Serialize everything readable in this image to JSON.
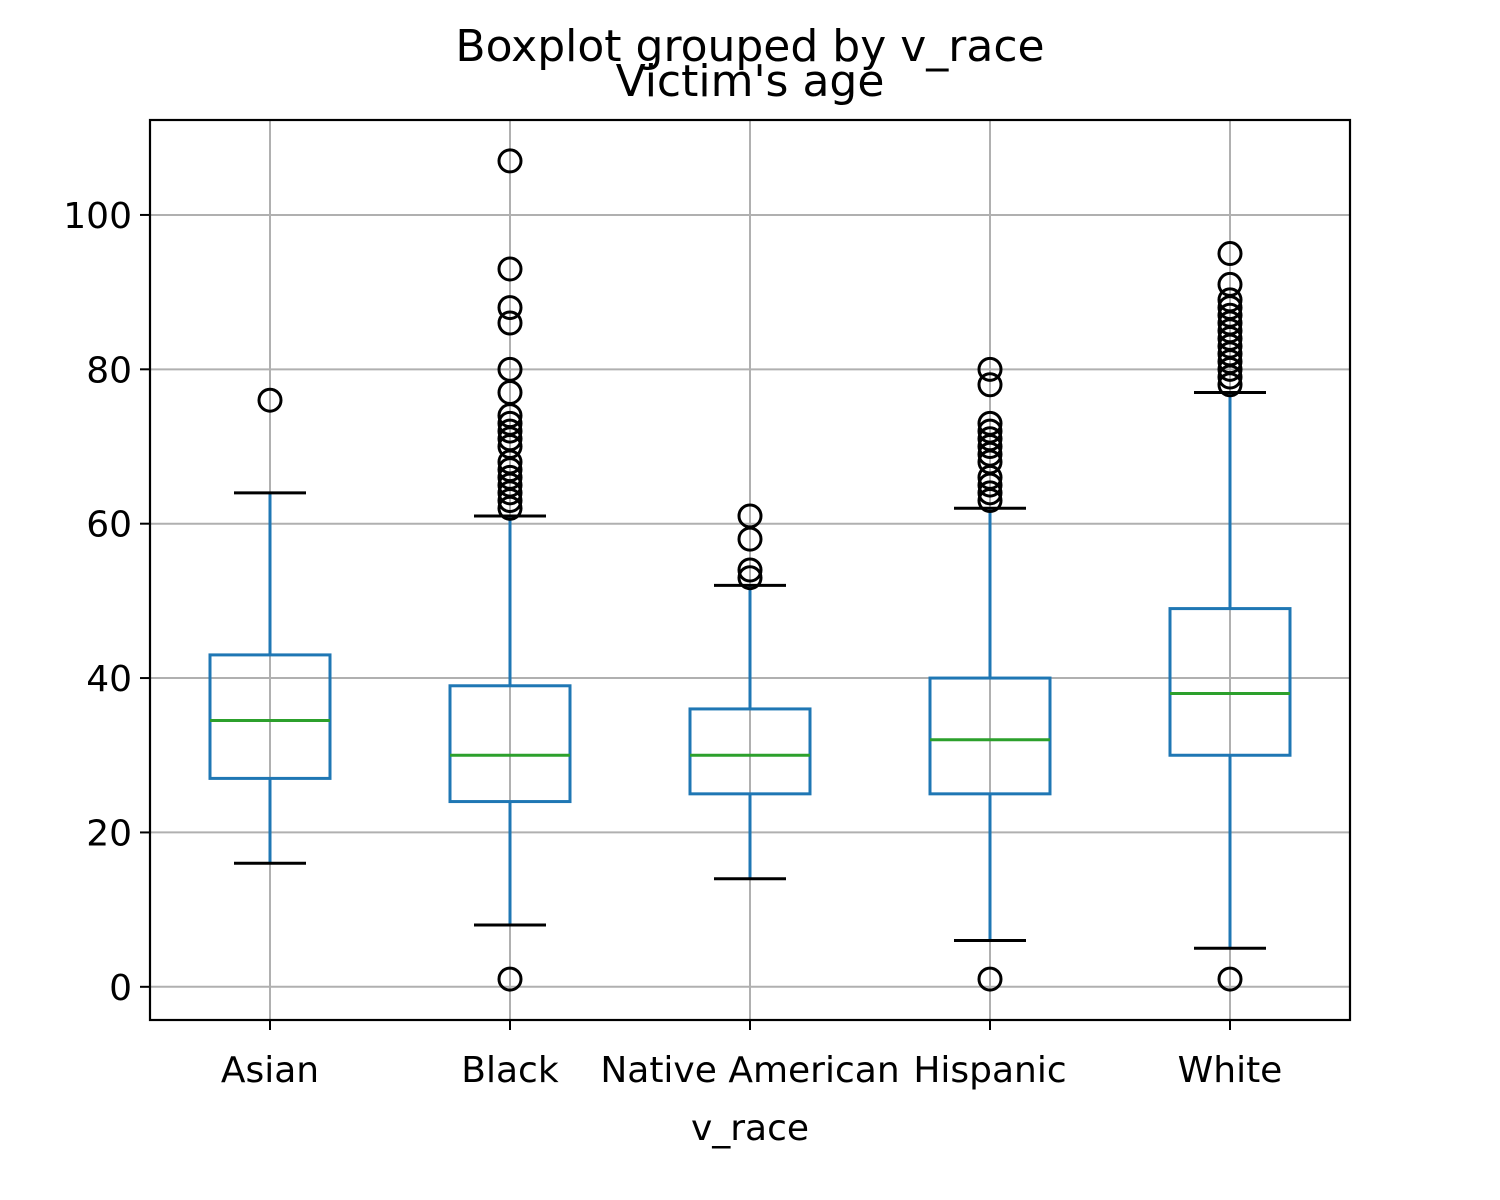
{
  "chart_data": {
    "type": "boxplot",
    "suptitle": "Boxplot grouped by v_race",
    "title": "Victim's age",
    "xlabel": "v_race",
    "ylabel": "",
    "ylim": [
      -4.3,
      112.3
    ],
    "yticks": [
      0,
      20,
      40,
      60,
      80,
      100
    ],
    "grid": true,
    "categories": [
      "Asian",
      "Black",
      "Native American",
      "Hispanic",
      "White"
    ],
    "boxes": [
      {
        "category": "Asian",
        "whisker_low": 16,
        "q1": 27,
        "median": 34.5,
        "q3": 43,
        "whisker_high": 64,
        "outliers": [
          76
        ]
      },
      {
        "category": "Black",
        "whisker_low": 8,
        "q1": 24,
        "median": 30,
        "q3": 39,
        "whisker_high": 61,
        "outliers": [
          1,
          62,
          63,
          64,
          65,
          66,
          67,
          68,
          70,
          71,
          72,
          73,
          74,
          77,
          80,
          86,
          88,
          93,
          107
        ]
      },
      {
        "category": "Native American",
        "whisker_low": 14,
        "q1": 25,
        "median": 30,
        "q3": 36,
        "whisker_high": 52,
        "outliers": [
          53,
          54,
          58,
          61
        ]
      },
      {
        "category": "Hispanic",
        "whisker_low": 6,
        "q1": 25,
        "median": 32,
        "q3": 40,
        "whisker_high": 62,
        "outliers": [
          1,
          63,
          64,
          65,
          66,
          68,
          69,
          70,
          71,
          72,
          73,
          78,
          80
        ]
      },
      {
        "category": "White",
        "whisker_low": 5,
        "q1": 30,
        "median": 38,
        "q3": 49,
        "whisker_high": 77,
        "outliers": [
          1,
          78,
          79,
          80,
          81,
          82,
          83,
          84,
          85,
          86,
          87,
          88,
          89,
          91,
          95
        ]
      }
    ],
    "colors": {
      "box": "#1f77b4",
      "median": "#2ca02c",
      "cap": "#000000",
      "flier": "#000000",
      "grid": "#b0b0b0"
    }
  }
}
